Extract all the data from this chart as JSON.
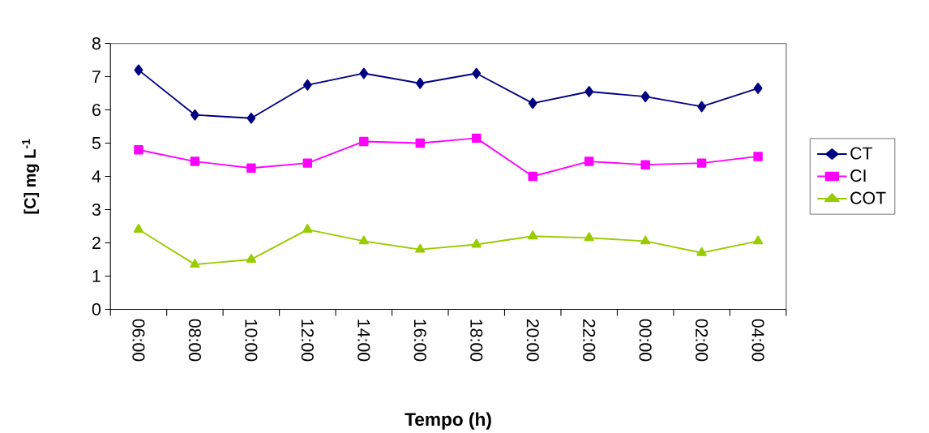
{
  "chart_data": {
    "type": "line",
    "xlabel": "Tempo (h)",
    "ylabel": "[C] mg L$^{-1}$",
    "categories": [
      "06:00",
      "08:00",
      "10:00",
      "12:00",
      "14:00",
      "16:00",
      "18:00",
      "20:00",
      "22:00",
      "00:00",
      "02:00",
      "04:00"
    ],
    "ylim": [
      0,
      8
    ],
    "yticks": [
      0,
      1,
      2,
      3,
      4,
      5,
      6,
      7,
      8
    ],
    "grid": false,
    "legend": "right",
    "line_style": "solid",
    "series": [
      {
        "name": "CT",
        "color": "#000080",
        "marker": "diamond",
        "values": [
          7.2,
          5.85,
          5.75,
          6.75,
          7.1,
          6.8,
          7.1,
          6.2,
          6.55,
          6.4,
          6.1,
          6.65
        ]
      },
      {
        "name": "CI",
        "color": "#ff00ff",
        "marker": "square",
        "values": [
          4.8,
          4.45,
          4.25,
          4.4,
          5.05,
          5.0,
          5.15,
          4.0,
          4.45,
          4.35,
          4.4,
          4.6
        ]
      },
      {
        "name": "COT",
        "color": "#99cc00",
        "marker": "triangle",
        "values": [
          2.4,
          1.35,
          1.5,
          2.4,
          2.05,
          1.8,
          1.95,
          2.2,
          2.15,
          2.05,
          1.7,
          2.05
        ]
      }
    ]
  }
}
